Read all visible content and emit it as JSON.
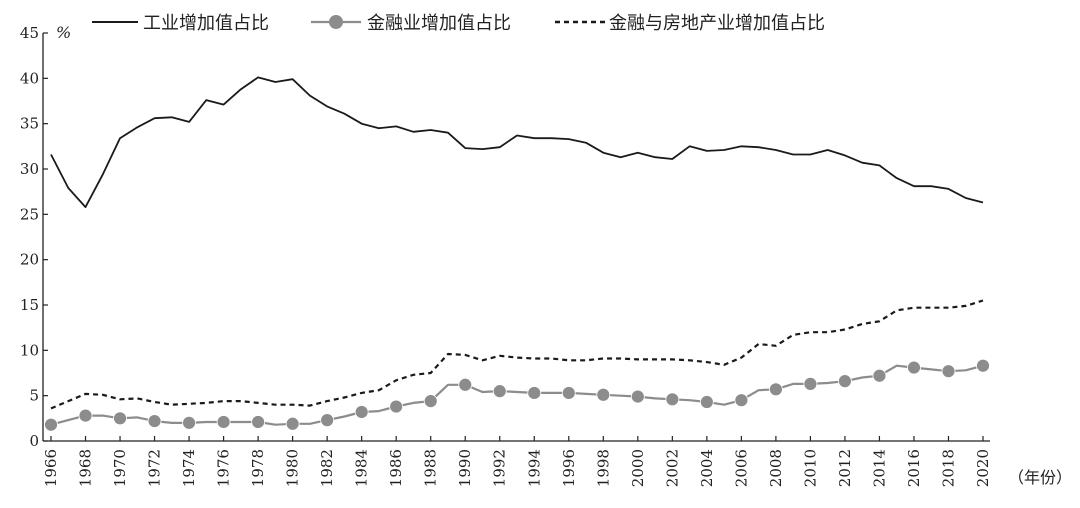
{
  "chart_data": {
    "type": "line",
    "title": "",
    "xlabel": "（年份）",
    "ylabel": "%",
    "xlim": [
      1966,
      2020
    ],
    "ylim": [
      0,
      45
    ],
    "yticks": [
      0,
      5,
      10,
      15,
      20,
      25,
      30,
      35,
      40,
      45
    ],
    "xticks": [
      1966,
      1968,
      1970,
      1972,
      1974,
      1976,
      1978,
      1980,
      1982,
      1984,
      1986,
      1988,
      1990,
      1992,
      1994,
      1996,
      1998,
      2000,
      2002,
      2004,
      2006,
      2008,
      2010,
      2012,
      2014,
      2016,
      2018,
      2020
    ],
    "legend_position": "top",
    "grid": false,
    "x": [
      1966,
      1967,
      1968,
      1969,
      1970,
      1971,
      1972,
      1973,
      1974,
      1975,
      1976,
      1977,
      1978,
      1979,
      1980,
      1981,
      1982,
      1983,
      1984,
      1985,
      1986,
      1987,
      1988,
      1989,
      1990,
      1991,
      1992,
      1993,
      1994,
      1995,
      1996,
      1997,
      1998,
      1999,
      2000,
      2001,
      2002,
      2003,
      2004,
      2005,
      2006,
      2007,
      2008,
      2009,
      2010,
      2011,
      2012,
      2013,
      2014,
      2015,
      2016,
      2017,
      2018,
      2019,
      2020
    ],
    "series": [
      {
        "name": "工业增加值占比",
        "style": "solid-dark",
        "color": "#1a1a1a",
        "values": [
          31.6,
          27.9,
          25.8,
          29.4,
          33.4,
          34.6,
          35.6,
          35.7,
          35.2,
          37.6,
          37.1,
          38.8,
          40.1,
          39.6,
          39.9,
          38.1,
          36.9,
          36.1,
          35.0,
          34.5,
          34.7,
          34.1,
          34.3,
          34.0,
          32.3,
          32.2,
          32.4,
          33.7,
          33.4,
          33.4,
          33.3,
          32.9,
          31.8,
          31.3,
          31.8,
          31.3,
          31.1,
          32.5,
          32.0,
          32.1,
          32.5,
          32.4,
          32.1,
          31.6,
          31.6,
          32.1,
          31.5,
          30.7,
          30.4,
          29.0,
          28.1,
          28.1,
          27.8,
          26.8,
          26.3
        ]
      },
      {
        "name": "金融业增加值占比",
        "style": "solid-gray-markers",
        "color": "#8c8c8c",
        "values": [
          1.8,
          2.3,
          2.8,
          2.8,
          2.5,
          2.6,
          2.2,
          2.0,
          2.0,
          2.1,
          2.1,
          2.1,
          2.1,
          1.8,
          1.9,
          1.9,
          2.3,
          2.7,
          3.2,
          3.3,
          3.8,
          4.2,
          4.4,
          6.2,
          6.2,
          5.4,
          5.5,
          5.4,
          5.3,
          5.3,
          5.3,
          5.2,
          5.1,
          5.0,
          4.9,
          4.7,
          4.6,
          4.5,
          4.3,
          4.0,
          4.5,
          5.6,
          5.7,
          6.3,
          6.3,
          6.4,
          6.6,
          7.0,
          7.2,
          8.3,
          8.1,
          7.9,
          7.7,
          7.8,
          8.3
        ]
      },
      {
        "name": "金融与房地产业增加值占比",
        "style": "dashed-dark",
        "color": "#1a1a1a",
        "values": [
          3.6,
          4.4,
          5.2,
          5.1,
          4.6,
          4.7,
          4.3,
          4.0,
          4.1,
          4.2,
          4.4,
          4.4,
          4.2,
          4.0,
          4.0,
          3.9,
          4.4,
          4.8,
          5.3,
          5.6,
          6.7,
          7.3,
          7.5,
          9.6,
          9.5,
          8.9,
          9.4,
          9.2,
          9.1,
          9.1,
          8.9,
          8.9,
          9.1,
          9.1,
          9.0,
          9.0,
          9.0,
          8.9,
          8.7,
          8.4,
          9.2,
          10.7,
          10.5,
          11.7,
          12.0,
          12.0,
          12.3,
          12.9,
          13.2,
          14.4,
          14.7,
          14.7,
          14.7,
          14.9,
          15.5
        ]
      }
    ],
    "marker_years": [
      1966,
      1968,
      1970,
      1972,
      1974,
      1976,
      1978,
      1980,
      1982,
      1984,
      1986,
      1988,
      1990,
      1992,
      1994,
      1996,
      1998,
      2000,
      2002,
      2004,
      2006,
      2008,
      2010,
      2012,
      2014,
      2016,
      2018,
      2020
    ]
  }
}
